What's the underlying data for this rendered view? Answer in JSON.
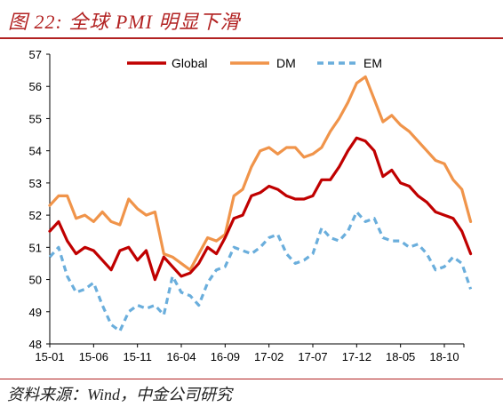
{
  "header": {
    "title": "图 22: 全球 PMI 明显下滑"
  },
  "footer": {
    "source": "资料来源：Wind，中金公司研究"
  },
  "colors": {
    "global": "#c00000",
    "dm": "#f0944a",
    "em": "#6aaedc",
    "title": "#b22222"
  },
  "chart_data": {
    "type": "line",
    "title": "",
    "xlabel": "",
    "ylabel": "",
    "ylim": [
      48,
      57
    ],
    "yticks": [
      48,
      49,
      50,
      51,
      52,
      53,
      54,
      55,
      56,
      57
    ],
    "xtick_labels": [
      "15-01",
      "15-06",
      "15-11",
      "16-04",
      "16-09",
      "17-02",
      "17-07",
      "17-12",
      "18-05",
      "18-10"
    ],
    "xtick_indices": [
      0,
      5,
      10,
      15,
      20,
      25,
      30,
      35,
      40,
      45
    ],
    "grid": false,
    "legend_position": "top",
    "x": [
      "15-01",
      "15-02",
      "15-03",
      "15-04",
      "15-05",
      "15-06",
      "15-07",
      "15-08",
      "15-09",
      "15-10",
      "15-11",
      "15-12",
      "16-01",
      "16-02",
      "16-03",
      "16-04",
      "16-05",
      "16-06",
      "16-07",
      "16-08",
      "16-09",
      "16-10",
      "16-11",
      "16-12",
      "17-01",
      "17-02",
      "17-03",
      "17-04",
      "17-05",
      "17-06",
      "17-07",
      "17-08",
      "17-09",
      "17-10",
      "17-11",
      "17-12",
      "18-01",
      "18-02",
      "18-03",
      "18-04",
      "18-05",
      "18-06",
      "18-07",
      "18-08",
      "18-09",
      "18-10",
      "18-11",
      "18-12",
      "19-01"
    ],
    "series": [
      {
        "name": "Global",
        "style": "solid",
        "values": [
          51.5,
          51.8,
          51.2,
          50.8,
          51.0,
          50.9,
          50.6,
          50.3,
          50.9,
          51.0,
          50.6,
          50.9,
          50.0,
          50.7,
          50.4,
          50.1,
          50.2,
          50.5,
          51.0,
          50.8,
          51.3,
          51.9,
          52.0,
          52.6,
          52.7,
          52.9,
          52.8,
          52.6,
          52.5,
          52.5,
          52.6,
          53.1,
          53.1,
          53.5,
          54.0,
          54.4,
          54.3,
          54.0,
          53.2,
          53.4,
          53.0,
          52.9,
          52.6,
          52.4,
          52.1,
          52.0,
          51.9,
          51.5,
          50.8
        ]
      },
      {
        "name": "DM",
        "style": "solid",
        "values": [
          52.3,
          52.6,
          52.6,
          51.9,
          52.0,
          51.8,
          52.1,
          51.8,
          51.7,
          52.5,
          52.2,
          52.0,
          52.1,
          50.8,
          50.7,
          50.5,
          50.3,
          50.8,
          51.3,
          51.2,
          51.4,
          52.6,
          52.8,
          53.5,
          54.0,
          54.1,
          53.9,
          54.1,
          54.1,
          53.8,
          53.9,
          54.1,
          54.6,
          55.0,
          55.5,
          56.1,
          56.3,
          55.6,
          54.9,
          55.1,
          54.8,
          54.6,
          54.3,
          54.0,
          53.7,
          53.6,
          53.1,
          52.8,
          51.8
        ]
      },
      {
        "name": "EM",
        "style": "dashed",
        "values": [
          50.7,
          51.0,
          50.1,
          49.6,
          49.7,
          49.9,
          49.2,
          48.6,
          48.4,
          49.0,
          49.2,
          49.1,
          49.2,
          48.9,
          50.1,
          49.6,
          49.5,
          49.2,
          49.9,
          50.3,
          50.4,
          51.0,
          50.9,
          50.8,
          51.0,
          51.3,
          51.4,
          50.8,
          50.5,
          50.6,
          50.8,
          51.6,
          51.3,
          51.2,
          51.5,
          52.1,
          51.8,
          51.9,
          51.3,
          51.2,
          51.2,
          51.0,
          51.1,
          50.8,
          50.3,
          50.4,
          50.7,
          50.5,
          49.7
        ]
      }
    ]
  }
}
